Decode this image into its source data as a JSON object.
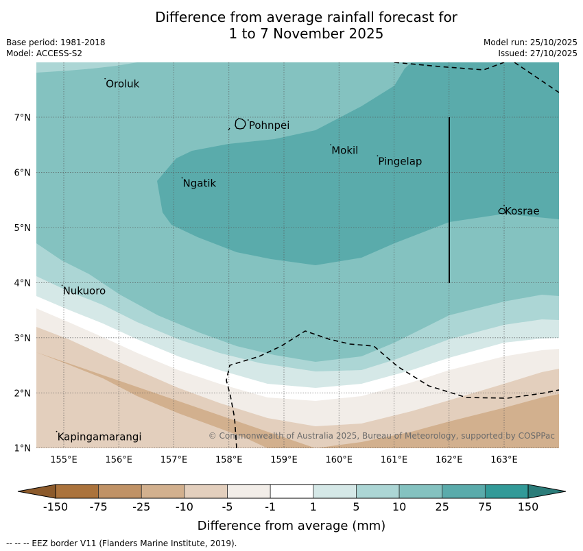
{
  "header": {
    "title_line1": "Difference from average rainfall forecast for",
    "title_line2": "1 to 7 November 2025",
    "base_period": "Base period: 1981-2018",
    "model": "Model: ACCESS-S2",
    "model_run": "Model run: 25/10/2025",
    "issued": "Issued: 27/10/2025"
  },
  "map": {
    "lon_ticks": [
      "155°E",
      "156°E",
      "157°E",
      "158°E",
      "159°E",
      "160°E",
      "161°E",
      "162°E",
      "163°E"
    ],
    "lat_ticks": [
      "7°N",
      "6°N",
      "5°N",
      "4°N",
      "3°N",
      "2°N",
      "1°N"
    ],
    "places": [
      {
        "name": "Oroluk",
        "lon": 155.75,
        "lat": 7.6
      },
      {
        "name": "Pohnpei",
        "lon": 158.35,
        "lat": 6.85
      },
      {
        "name": "Mokil",
        "lon": 159.85,
        "lat": 6.4
      },
      {
        "name": "Pingelap",
        "lon": 160.7,
        "lat": 6.2
      },
      {
        "name": "Ngatik",
        "lon": 157.15,
        "lat": 5.8
      },
      {
        "name": "Kosrae",
        "lon": 163.0,
        "lat": 5.3
      },
      {
        "name": "Nukuoro",
        "lon": 154.97,
        "lat": 3.85
      },
      {
        "name": "Kapingamarangi",
        "lon": 154.87,
        "lat": 1.2
      }
    ],
    "copyright": "© Commonwealth of Australia 2025, Bureau of Meteorology, supported by COSPPac"
  },
  "colorbar": {
    "label": "Difference from average (mm)",
    "ticks": [
      "-150",
      "-75",
      "-25",
      "-10",
      "-5",
      "-1",
      "1",
      "5",
      "10",
      "25",
      "75",
      "150"
    ],
    "colors": {
      "below_-150": "#8c5a2b",
      "-150_-75": "#ab733c",
      "-75_-25": "#c09266",
      "-25_-10": "#d2b08e",
      "-10_-5": "#e3cfbd",
      "-5_-1": "#f2ede8",
      "-1_1": "#ffffff",
      "1_5": "#d5e8e7",
      "5_10": "#acd6d5",
      "10_25": "#84c2c0",
      "25_75": "#5aabab",
      "75_150": "#329a98",
      "above_150": "#2b7c79"
    }
  },
  "footnote": "--  --  -- EEZ border V11 (Flanders Marine Institute, 2019)."
}
